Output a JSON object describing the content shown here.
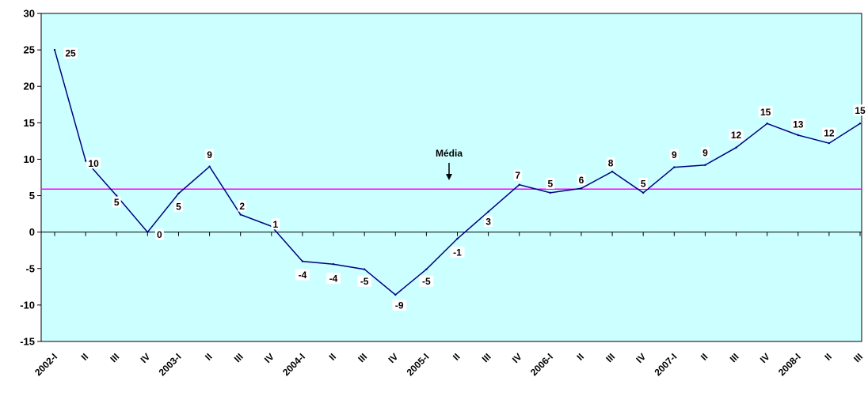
{
  "chart_data": {
    "type": "line",
    "title": "",
    "xlabel": "",
    "ylabel": "",
    "ylim": [
      -15,
      30
    ],
    "yticks": [
      -15,
      -10,
      -5,
      0,
      5,
      10,
      15,
      20,
      25,
      30
    ],
    "ytick_labels": [
      "-15",
      "-10",
      "-5",
      "0",
      "5",
      "10",
      "15",
      "20",
      "25",
      "30"
    ],
    "grid": false,
    "categories": [
      "2002-I",
      "II",
      "III",
      "IV",
      "2003-I",
      "II",
      "III",
      "IV",
      "2004-I",
      "II",
      "III",
      "IV",
      "2005-I",
      "II",
      "III",
      "IV",
      "2006-I",
      "II",
      "III",
      "IV",
      "2007-I",
      "II",
      "III",
      "IV",
      "2008-I",
      "II",
      "III"
    ],
    "series": [
      {
        "color": "#000080",
        "values": [
          25,
          10,
          5,
          0,
          5,
          9,
          2,
          1,
          -4,
          -4,
          -5,
          -9,
          -5,
          -1,
          3,
          7,
          5,
          6,
          8,
          5,
          9,
          9,
          12,
          15,
          13,
          12,
          15
        ],
        "plot_values": [
          25.0,
          9.8,
          5.0,
          0.0,
          5.3,
          9.0,
          2.4,
          0.8,
          -4.0,
          -4.4,
          -5.1,
          -8.6,
          -5.1,
          -0.9,
          2.8,
          6.5,
          5.4,
          6.0,
          8.3,
          5.4,
          8.9,
          9.2,
          11.6,
          14.9,
          13.3,
          12.2,
          14.9
        ],
        "data_labels": [
          "25",
          "10",
          "5",
          "0",
          "5",
          "9",
          "2",
          "1",
          "-4",
          "-4",
          "-5",
          "-9",
          "-5",
          "-1",
          "3",
          "7",
          "5",
          "6",
          "8",
          "5",
          "9",
          "9",
          "12",
          "15",
          "13",
          "12",
          "15"
        ]
      }
    ],
    "reference_line": {
      "label": "Média",
      "value": 5.9,
      "color": "#ff00ff"
    },
    "colors": {
      "plot_background": "#ccffff",
      "axis": "#000000"
    }
  }
}
